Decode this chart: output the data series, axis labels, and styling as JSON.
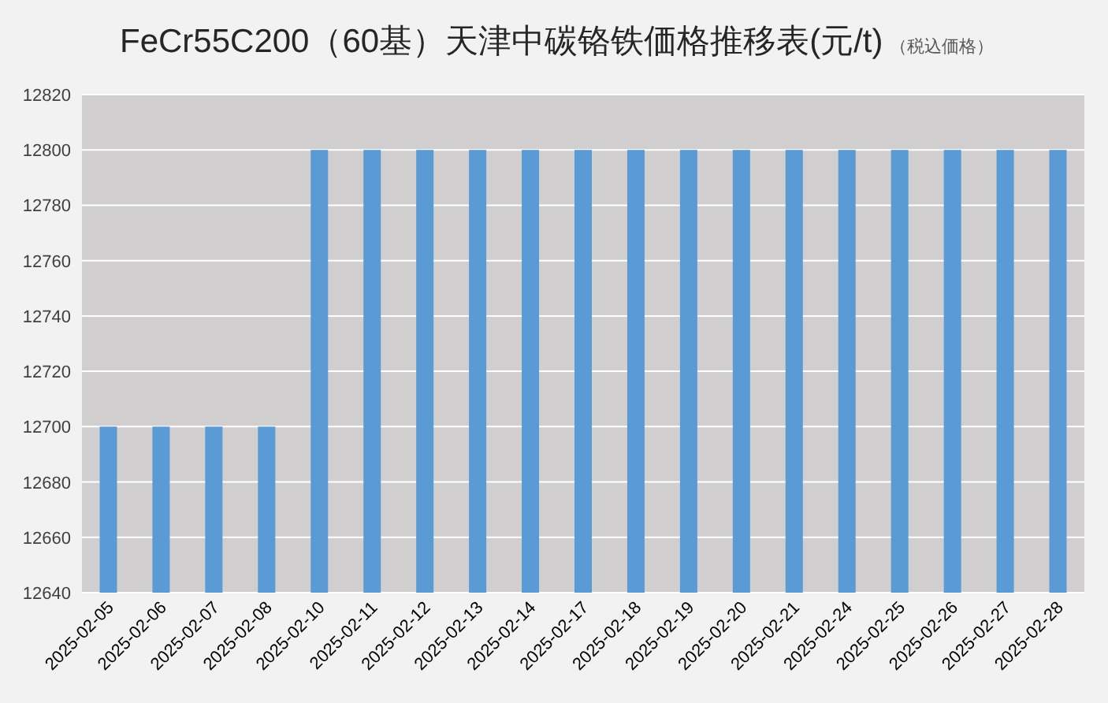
{
  "chart_data": {
    "type": "bar",
    "title": "FeCr55C200（60基）天津中碳铬铁価格推移表(元/t)",
    "subtitle": "（税込価格）",
    "categories": [
      "2025-02-05",
      "2025-02-06",
      "2025-02-07",
      "2025-02-08",
      "2025-02-10",
      "2025-02-11",
      "2025-02-12",
      "2025-02-13",
      "2025-02-14",
      "2025-02-17",
      "2025-02-18",
      "2025-02-19",
      "2025-02-20",
      "2025-02-21",
      "2025-02-24",
      "2025-02-25",
      "2025-02-26",
      "2025-02-27",
      "2025-02-28"
    ],
    "values": [
      12700,
      12700,
      12700,
      12700,
      12800,
      12800,
      12800,
      12800,
      12800,
      12800,
      12800,
      12800,
      12800,
      12800,
      12800,
      12800,
      12800,
      12800,
      12800
    ],
    "color": "#5b9bd5",
    "ylim": [
      12640,
      12820
    ],
    "yticks": [
      12640,
      12660,
      12680,
      12700,
      12720,
      12740,
      12760,
      12780,
      12800,
      12820
    ],
    "grid": "y"
  }
}
